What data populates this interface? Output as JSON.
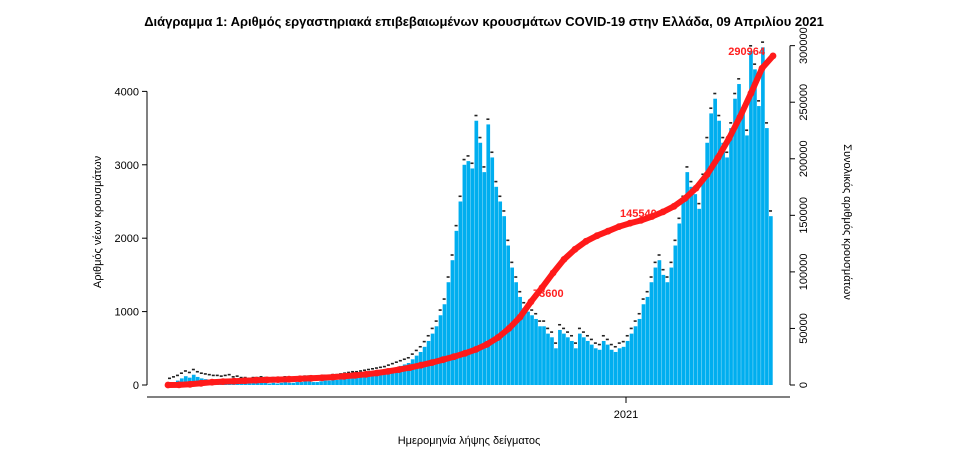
{
  "chart_data": {
    "type": "bar",
    "title": "Διάγραμμα 1: Αριθμός εργαστηριακά επιβεβαιωμένων κρουσμάτων COVID-19 στην Ελλάδα, 09 Απριλίου 2021",
    "xlabel": "Ημερομηνία λήψης δείγματος",
    "ylabel_left": "Αριθμός νέων κρουσμάτων",
    "ylabel_right": "Συνολικός αριθμός κρουσμάτων",
    "x_tick_label": "2021",
    "ylim_left": [
      0,
      4700
    ],
    "ylim_right": [
      0,
      305000
    ],
    "yticks_left": [
      0,
      1000,
      2000,
      3000,
      4000
    ],
    "yticks_right": [
      0,
      50000,
      100000,
      150000,
      200000,
      250000,
      300000
    ],
    "annotations": [
      "290964",
      "145540",
      "73600"
    ],
    "colors": {
      "bars": "#00aeef",
      "cumulative": "#ff1a1a",
      "points": "#222222"
    },
    "series": [
      {
        "name": "daily",
        "axis": "left",
        "type": "bar",
        "values": [
          20,
          40,
          60,
          90,
          120,
          100,
          140,
          110,
          90,
          80,
          70,
          60,
          60,
          50,
          60,
          70,
          40,
          50,
          30,
          30,
          20,
          30,
          30,
          40,
          30,
          20,
          30,
          20,
          30,
          40,
          30,
          30,
          40,
          40,
          50,
          50,
          40,
          40,
          50,
          60,
          60,
          70,
          70,
          80,
          90,
          100,
          110,
          110,
          120,
          130,
          140,
          150,
          160,
          170,
          180,
          200,
          220,
          240,
          260,
          280,
          300,
          350,
          400,
          450,
          520,
          600,
          700,
          800,
          950,
          1100,
          1400,
          1700,
          2100,
          2500,
          3000,
          3050,
          2950,
          3600,
          3300,
          2900,
          3550,
          3100,
          2700,
          2500,
          2300,
          1900,
          1600,
          1400,
          1200,
          1050,
          1000,
          950,
          900,
          800,
          800,
          700,
          650,
          500,
          750,
          700,
          650,
          600,
          500,
          700,
          650,
          600,
          550,
          500,
          480,
          600,
          550,
          480,
          450,
          500,
          520,
          600,
          700,
          800,
          900,
          1100,
          1200,
          1400,
          1600,
          1700,
          1500,
          1400,
          1600,
          1900,
          2200,
          2500,
          2900,
          2700,
          2600,
          2400,
          2800,
          3300,
          3700,
          3900,
          3600,
          3300,
          3100,
          3500,
          3900,
          4100,
          3700,
          3400,
          4550,
          4300,
          3800,
          4600,
          3500,
          2300
        ]
      },
      {
        "name": "cumulative",
        "axis": "right",
        "type": "line",
        "values": [
          0,
          130,
          600,
          1500,
          2500,
          3000,
          3400,
          3800,
          4200,
          4500,
          4800,
          5100,
          5500,
          5900,
          6400,
          7000,
          7700,
          8500,
          9500,
          10600,
          12000,
          13600,
          15400,
          17500,
          19800,
          22400,
          25000,
          28000,
          31500,
          36000,
          42000,
          50000,
          60000,
          73600,
          86000,
          99000,
          111000,
          120000,
          127000,
          132000,
          136000,
          140000,
          143000,
          145540,
          149000,
          153000,
          158000,
          165000,
          174000,
          186000,
          201000,
          218000,
          237000,
          258000,
          280000,
          290964
        ]
      }
    ]
  }
}
